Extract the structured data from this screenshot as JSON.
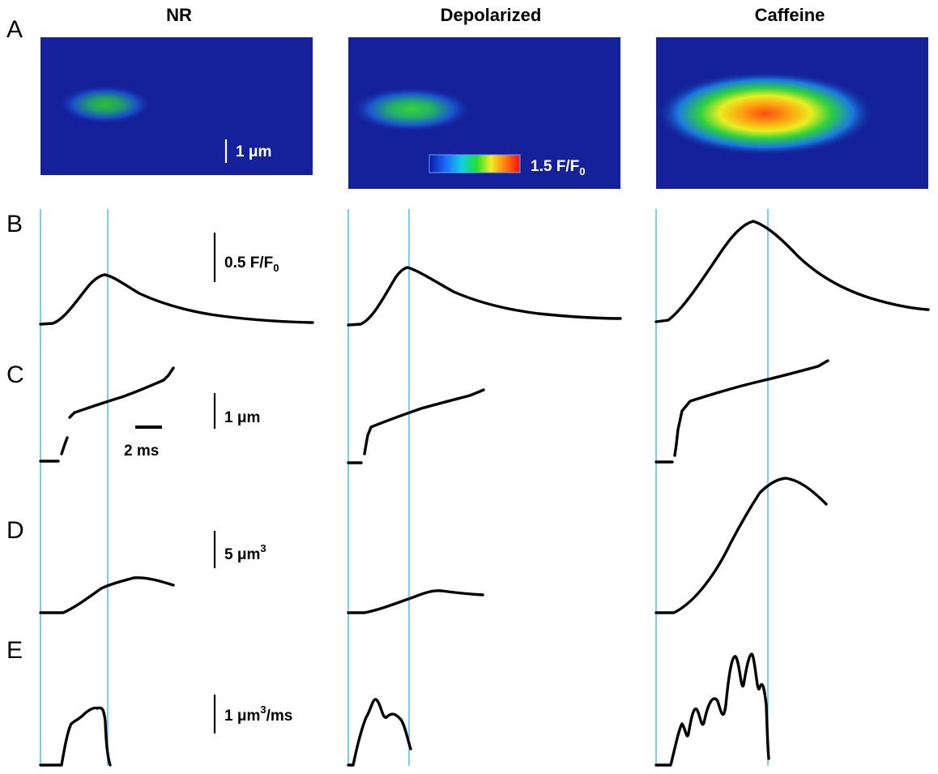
{
  "panel_letters": [
    "A",
    "B",
    "C",
    "D",
    "E"
  ],
  "columns": [
    {
      "title": "NR",
      "spark_amplitude": 0.55,
      "spark_width": 0.45
    },
    {
      "title": "Depolarized",
      "spark_amplitude": 0.6,
      "spark_width": 0.55
    },
    {
      "title": "Caffeine",
      "spark_amplitude": 1.0,
      "spark_width": 1.0
    }
  ],
  "scale_bars": {
    "length_um": "1 μm",
    "colorbar": "1.5 F/F",
    "colorbar_sub": "0",
    "b_fluorescence": "0.5 F/F",
    "b_sub": "0",
    "c_length": "1 μm",
    "c_time": "2 ms",
    "d_volume": "5 μm",
    "d_sup": "3",
    "e_rate": "1 μm",
    "e_sup": "3",
    "e_suffix": "/ms"
  },
  "colors": {
    "cursor": "#2ab8e6",
    "image_background": "#14219a",
    "colormap": [
      "#0a1aa0",
      "#1a6bff",
      "#10d0e0",
      "#22dd33",
      "#f2ee20",
      "#ff7a10",
      "#ff1010"
    ]
  }
}
